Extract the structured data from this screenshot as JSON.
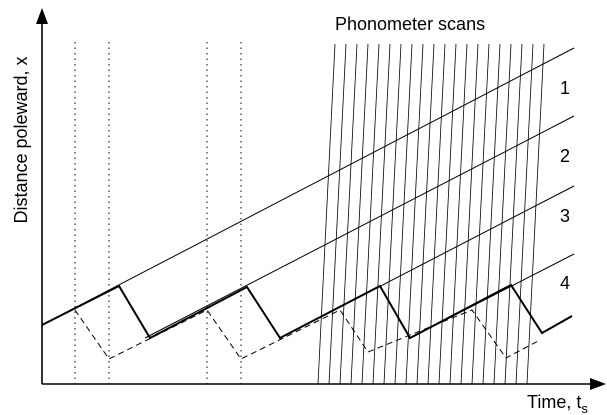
{
  "title": "Phonometer scans",
  "x_axis_label": "Time, t",
  "x_axis_subscript": "s",
  "y_axis_label": "Distance poleward, x",
  "line_labels": [
    "1",
    "2",
    "3",
    "4"
  ],
  "colors": {
    "background": "#ffffff",
    "ink": "#000000"
  }
}
